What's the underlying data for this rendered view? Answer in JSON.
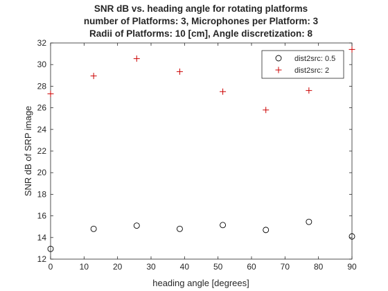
{
  "chart_data": {
    "type": "scatter",
    "title_lines": [
      "SNR dB vs. heading angle for rotating platforms",
      "number of Platforms: 3, Microphones per Platform: 3",
      "Radii of Platforms: 10 [cm], Angle discretization: 8"
    ],
    "xlabel": "heading angle [degrees]",
    "ylabel": "SNR dB of SRP image",
    "xlim": [
      0,
      90
    ],
    "ylim": [
      12,
      32
    ],
    "xticks": [
      0,
      10,
      20,
      30,
      40,
      50,
      60,
      70,
      80,
      90
    ],
    "yticks": [
      12,
      14,
      16,
      18,
      20,
      22,
      24,
      26,
      28,
      30,
      32
    ],
    "grid": false,
    "legend_position": "top-right",
    "series": [
      {
        "name": "dist2src: 0.5",
        "marker": "circle",
        "color": "#000000",
        "x": [
          0,
          12.857,
          25.714,
          38.571,
          51.429,
          64.286,
          77.143,
          90
        ],
        "y": [
          12.95,
          14.8,
          15.1,
          14.8,
          15.15,
          14.7,
          15.45,
          14.1
        ]
      },
      {
        "name": "dist2src: 2",
        "marker": "plus",
        "color": "#cc0000",
        "x": [
          0,
          12.857,
          25.714,
          38.571,
          51.429,
          64.286,
          77.143,
          90
        ],
        "y": [
          27.3,
          28.95,
          30.55,
          29.35,
          27.5,
          25.8,
          27.6,
          31.4
        ]
      }
    ]
  }
}
